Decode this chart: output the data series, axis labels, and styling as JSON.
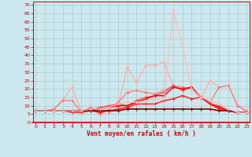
{
  "title": "",
  "xlabel": "Vent moyen/en rafales ( km/h )",
  "bg_color": "#cce8ee",
  "grid_color": "#aacccc",
  "x_ticks": [
    0,
    1,
    2,
    3,
    4,
    5,
    6,
    7,
    8,
    9,
    10,
    11,
    12,
    13,
    14,
    15,
    16,
    17,
    18,
    19,
    20,
    21,
    22,
    23
  ],
  "y_ticks": [
    0,
    5,
    10,
    15,
    20,
    25,
    30,
    35,
    40,
    45,
    50,
    55,
    60,
    65,
    70
  ],
  "ylim": [
    0,
    72
  ],
  "xlim": [
    -0.3,
    23.3
  ],
  "series": [
    {
      "color": "#ffaaaa",
      "lw": 0.9,
      "values": [
        7,
        7,
        8,
        14,
        21,
        6,
        9,
        5,
        5,
        10,
        33,
        24,
        34,
        34,
        36,
        21,
        20,
        20,
        14,
        25,
        21,
        22,
        10,
        6
      ]
    },
    {
      "color": "#ff7777",
      "lw": 0.9,
      "values": [
        7,
        7,
        8,
        13,
        13,
        6,
        9,
        5,
        8,
        12,
        18,
        19,
        18,
        17,
        19,
        22,
        21,
        20,
        15,
        12,
        21,
        22,
        10,
        7
      ]
    },
    {
      "color": "#ff4444",
      "lw": 0.9,
      "values": [
        7,
        7,
        7,
        7,
        7,
        7,
        7,
        9,
        10,
        11,
        10,
        13,
        15,
        16,
        18,
        22,
        19,
        21,
        15,
        11,
        10,
        7,
        6,
        6
      ]
    },
    {
      "color": "#dd1111",
      "lw": 1.1,
      "values": [
        7,
        7,
        7,
        7,
        7,
        7,
        8,
        8,
        9,
        10,
        10,
        12,
        14,
        16,
        16,
        21,
        20,
        21,
        15,
        11,
        9,
        7,
        6,
        6
      ]
    },
    {
      "color": "#ff2222",
      "lw": 1.1,
      "values": [
        7,
        7,
        7,
        7,
        6,
        6,
        7,
        6,
        7,
        8,
        9,
        11,
        11,
        11,
        13,
        14,
        16,
        14,
        15,
        11,
        8,
        7,
        6,
        6
      ]
    },
    {
      "color": "#880000",
      "lw": 1.2,
      "values": [
        7,
        7,
        7,
        7,
        7,
        7,
        7,
        7,
        7,
        7,
        8,
        8,
        8,
        8,
        8,
        8,
        8,
        8,
        8,
        8,
        7,
        7,
        6,
        6
      ]
    },
    {
      "color": "#ffbbbb",
      "lw": 0.9,
      "values": [
        7,
        7,
        7,
        7,
        7,
        7,
        8,
        8,
        9,
        11,
        12,
        12,
        13,
        14,
        14,
        67,
        46,
        20,
        15,
        13,
        11,
        8,
        6,
        6
      ]
    }
  ]
}
